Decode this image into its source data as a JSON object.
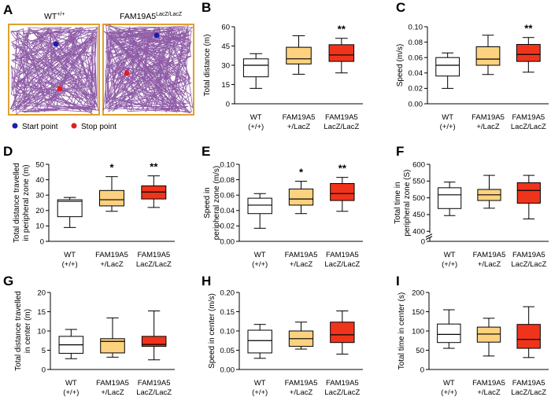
{
  "figure": {
    "panel_a": {
      "label": "A",
      "arena_left_title": "WT",
      "arena_left_sup": "+/+",
      "arena_right_title": "FAM19A5",
      "arena_right_sup": "LacZ/LacZ",
      "legend": [
        {
          "label": "Start point",
          "color": "#1f1fa8"
        },
        {
          "label": "Stop point",
          "color": "#e0201c"
        }
      ],
      "track_color": "#7b3f98",
      "arena_border_color": "#e0a030"
    }
  },
  "chart_data": [
    {
      "panel": "B",
      "type": "boxplot",
      "ylabel": "Total distance (m)",
      "ylim": [
        0,
        60
      ],
      "yticks": [
        0,
        15,
        30,
        45,
        60
      ],
      "ytick_labels": [
        "0",
        "15",
        "30",
        "45",
        "60"
      ],
      "categories": [
        [
          "WT",
          "(+/+)"
        ],
        [
          "FAM19A5",
          "+/LacZ"
        ],
        [
          "FAM19A5",
          "LacZ/LacZ"
        ]
      ],
      "boxes": [
        {
          "min": 12,
          "q1": 21,
          "median": 30,
          "q3": 35,
          "max": 39,
          "fill": "#ffffff"
        },
        {
          "min": 23,
          "q1": 31,
          "median": 35,
          "q3": 44,
          "max": 53,
          "fill": "#fdd27f"
        },
        {
          "min": 24,
          "q1": 33,
          "median": 38,
          "q3": 46,
          "max": 51,
          "fill": "#f0341c"
        }
      ],
      "significance": [
        "",
        "",
        "**"
      ]
    },
    {
      "panel": "C",
      "type": "boxplot",
      "ylabel": "Speed (m/s)",
      "ylim": [
        0,
        0.1
      ],
      "yticks": [
        0,
        0.02,
        0.04,
        0.06,
        0.08,
        0.1
      ],
      "ytick_labels": [
        "0.00",
        "0.02",
        "0.04",
        "0.06",
        "0.08",
        "0.10"
      ],
      "categories": [
        [
          "WT",
          "(+/+)"
        ],
        [
          "FAM19A5",
          "+/LacZ"
        ],
        [
          "FAM19A5",
          "LacZ/LacZ"
        ]
      ],
      "boxes": [
        {
          "min": 0.02,
          "q1": 0.036,
          "median": 0.05,
          "q3": 0.06,
          "max": 0.066,
          "fill": "#ffffff"
        },
        {
          "min": 0.038,
          "q1": 0.05,
          "median": 0.058,
          "q3": 0.074,
          "max": 0.089,
          "fill": "#fdd27f"
        },
        {
          "min": 0.041,
          "q1": 0.055,
          "median": 0.064,
          "q3": 0.077,
          "max": 0.086,
          "fill": "#f0341c"
        }
      ],
      "significance": [
        "",
        "",
        "**"
      ]
    },
    {
      "panel": "D",
      "type": "boxplot",
      "ylabel": [
        "Total distance travelled",
        "in peripheral zone (m)"
      ],
      "ylim": [
        0,
        50
      ],
      "yticks": [
        0,
        10,
        20,
        30,
        40,
        50
      ],
      "ytick_labels": [
        "0",
        "10",
        "20",
        "30",
        "40",
        "50"
      ],
      "categories": [
        [
          "WT",
          "(+/+)"
        ],
        [
          "FAM19A5",
          "+/LacZ"
        ],
        [
          "FAM19A5",
          "LacZ/LacZ"
        ]
      ],
      "boxes": [
        {
          "min": 9,
          "q1": 16,
          "median": 26,
          "q3": 27,
          "max": 28.5,
          "fill": "#ffffff"
        },
        {
          "min": 19.5,
          "q1": 23,
          "median": 27,
          "q3": 33,
          "max": 42,
          "fill": "#fdd27f"
        },
        {
          "min": 22,
          "q1": 27.5,
          "median": 32,
          "q3": 36,
          "max": 42.5,
          "fill": "#f0341c"
        }
      ],
      "significance": [
        "",
        "*",
        "**"
      ]
    },
    {
      "panel": "E",
      "type": "boxplot",
      "ylabel": [
        "Speed in",
        "peripheral zone (m/s)"
      ],
      "ylim": [
        0,
        0.1
      ],
      "yticks": [
        0,
        0.02,
        0.04,
        0.06,
        0.08,
        0.1
      ],
      "ytick_labels": [
        "0.00",
        "0.02",
        "0.04",
        "0.06",
        "0.08",
        "0.10"
      ],
      "categories": [
        [
          "WT",
          "(+/+)"
        ],
        [
          "FAM19A5",
          "+/LacZ"
        ],
        [
          "FAM19A5",
          "LacZ/LacZ"
        ]
      ],
      "boxes": [
        {
          "min": 0.017,
          "q1": 0.036,
          "median": 0.047,
          "q3": 0.056,
          "max": 0.062,
          "fill": "#ffffff"
        },
        {
          "min": 0.036,
          "q1": 0.047,
          "median": 0.055,
          "q3": 0.068,
          "max": 0.078,
          "fill": "#fdd27f"
        },
        {
          "min": 0.039,
          "q1": 0.053,
          "median": 0.062,
          "q3": 0.075,
          "max": 0.083,
          "fill": "#f0341c"
        }
      ],
      "significance": [
        "",
        "*",
        "**"
      ]
    },
    {
      "panel": "F",
      "type": "boxplot",
      "ylabel": [
        "Total time in",
        "peripheral zone (S)"
      ],
      "ylim": [
        0,
        600
      ],
      "axis_break": true,
      "yticks": [
        0,
        400,
        450,
        500,
        550,
        600
      ],
      "ytick_labels": [
        "0",
        "400",
        "450",
        "500",
        "550",
        "600"
      ],
      "categories": [
        [
          "WT",
          "(+/+)"
        ],
        [
          "FAM19A5",
          "+/LacZ"
        ],
        [
          "FAM19A5",
          "LacZ/LacZ"
        ]
      ],
      "boxes": [
        {
          "min": 447,
          "q1": 468,
          "median": 509,
          "q3": 530,
          "max": 547,
          "fill": "#ffffff"
        },
        {
          "min": 469,
          "q1": 492,
          "median": 509,
          "q3": 525,
          "max": 567,
          "fill": "#fdd27f"
        },
        {
          "min": 437,
          "q1": 484,
          "median": 522,
          "q3": 545,
          "max": 567,
          "fill": "#f0341c"
        }
      ],
      "significance": [
        "",
        "",
        ""
      ]
    },
    {
      "panel": "G",
      "type": "boxplot",
      "ylabel": [
        "Total distance travelled",
        "in center (m)"
      ],
      "ylim": [
        0,
        20
      ],
      "yticks": [
        0,
        5,
        10,
        15,
        20
      ],
      "ytick_labels": [
        "0",
        "5",
        "10",
        "15",
        "20"
      ],
      "categories": [
        [
          "WT",
          "(+/+)"
        ],
        [
          "FAM19A5",
          "+/LacZ"
        ],
        [
          "FAM19A5",
          "LacZ/LacZ"
        ]
      ],
      "boxes": [
        {
          "min": 2.8,
          "q1": 4.2,
          "median": 6.4,
          "q3": 8.6,
          "max": 10.4,
          "fill": "#ffffff"
        },
        {
          "min": 3.2,
          "q1": 4.3,
          "median": 7.3,
          "q3": 8,
          "max": 13.4,
          "fill": "#fdd27f"
        },
        {
          "min": 2.5,
          "q1": 6,
          "median": 6.5,
          "q3": 8.6,
          "max": 15.2,
          "fill": "#f0341c"
        }
      ],
      "significance": [
        "",
        "",
        ""
      ]
    },
    {
      "panel": "H",
      "type": "boxplot",
      "ylabel": "Speed in center (m/s)",
      "ylim": [
        0,
        0.2
      ],
      "yticks": [
        0,
        0.05,
        0.1,
        0.15,
        0.2
      ],
      "ytick_labels": [
        "0.00",
        "0.05",
        "0.10",
        "0.15",
        "0.20"
      ],
      "categories": [
        [
          "WT",
          "(+/+)"
        ],
        [
          "FAM19A5",
          "+/LacZ"
        ],
        [
          "FAM19A5",
          "LacZ/LacZ"
        ]
      ],
      "boxes": [
        {
          "min": 0.029,
          "q1": 0.043,
          "median": 0.075,
          "q3": 0.102,
          "max": 0.117,
          "fill": "#ffffff"
        },
        {
          "min": 0.053,
          "q1": 0.06,
          "median": 0.08,
          "q3": 0.1,
          "max": 0.123,
          "fill": "#fdd27f"
        },
        {
          "min": 0.04,
          "q1": 0.07,
          "median": 0.09,
          "q3": 0.123,
          "max": 0.152,
          "fill": "#f0341c"
        }
      ],
      "significance": [
        "",
        "",
        ""
      ]
    },
    {
      "panel": "I",
      "type": "boxplot",
      "ylabel": "Total time in center (s)",
      "ylim": [
        0,
        200
      ],
      "yticks": [
        0,
        50,
        100,
        150,
        200
      ],
      "ytick_labels": [
        "0",
        "50",
        "100",
        "150",
        "200"
      ],
      "categories": [
        [
          "WT",
          "(+/+)"
        ],
        [
          "FAM19A5",
          "+/LacZ"
        ],
        [
          "FAM19A5",
          "LacZ/LacZ"
        ]
      ],
      "boxes": [
        {
          "min": 55,
          "q1": 70,
          "median": 91,
          "q3": 118,
          "max": 155,
          "fill": "#ffffff"
        },
        {
          "min": 35,
          "q1": 71,
          "median": 92,
          "q3": 110,
          "max": 133,
          "fill": "#fdd27f"
        },
        {
          "min": 31,
          "q1": 55,
          "median": 78,
          "q3": 117,
          "max": 163,
          "fill": "#f0341c"
        }
      ],
      "significance": [
        "",
        "",
        ""
      ]
    }
  ]
}
